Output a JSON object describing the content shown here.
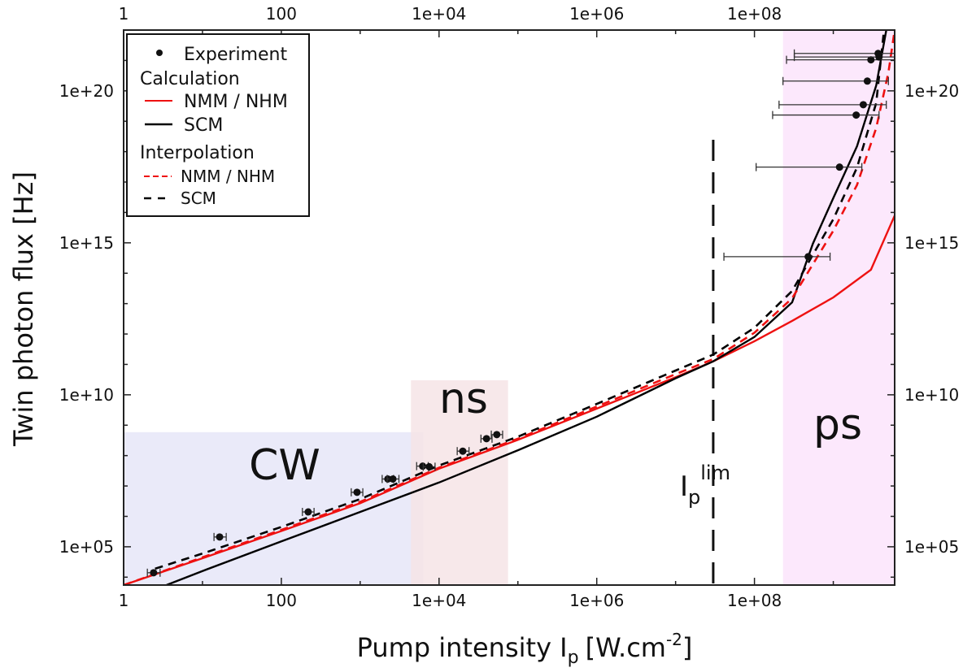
{
  "chart_data": {
    "type": "scatter",
    "xlabel": "Pump intensity I",
    "xlabel_sub": "p",
    "xlabel_unit": "[W.cm",
    "xlabel_sup": "-2",
    "xlabel_end": "]",
    "ylabel": "Twin photon flux [Hz]",
    "xscale": "log",
    "yscale": "log",
    "xlim": [
      1,
      6000000000.0
    ],
    "ylim": [
      5500.0,
      1e+22
    ],
    "grid": false,
    "legend_placement": "top-left",
    "x_ticks": [
      1,
      100,
      10000.0,
      1000000.0,
      100000000.0
    ],
    "x_tick_labels": [
      "1",
      "100",
      "1e+04",
      "1e+06",
      "1e+08"
    ],
    "y_ticks": [
      100000.0,
      10000000000.0,
      1000000000000000.0,
      1e+20
    ],
    "y_tick_labels": [
      "1e+05",
      "1e+10",
      "1e+15",
      "1e+20"
    ],
    "legend": {
      "experiment": "Experiment",
      "calculation": "Calculation",
      "calc_nmm": "NMM / NHM",
      "calc_scm": "SCM",
      "interpolation": "Interpolation",
      "interp_nmm": "NMM / NHM",
      "interp_scm": "SCM"
    },
    "regions": [
      {
        "label": "CW",
        "x": [
          1,
          6300
        ],
        "y": [
          5500.0,
          590000000.0
        ],
        "color": "#e6e6f8"
      },
      {
        "label": "ns",
        "x": [
          4400,
          75000.0
        ],
        "y": [
          5500.0,
          30000000000.0
        ],
        "color": "#f6e4e6"
      },
      {
        "label": "ps",
        "x": [
          230000000.0,
          6000000000.0
        ],
        "y": [
          5500.0,
          1e+22
        ],
        "color": "#fbe4fb"
      }
    ],
    "limit_line": {
      "x": 30000000.0,
      "label": "I",
      "label_sub": "p",
      "label_sup": "lim"
    },
    "experiment": [
      {
        "x": 2.4,
        "y": 14000.0,
        "xlo": 2.0,
        "xhi": 2.9
      },
      {
        "x": 16.5,
        "y": 210000.0,
        "xlo": 14,
        "xhi": 20
      },
      {
        "x": 219,
        "y": 1400000.0,
        "xlo": 185,
        "xhi": 260
      },
      {
        "x": 912,
        "y": 6200000.0,
        "xlo": 770,
        "xhi": 1080
      },
      {
        "x": 2240,
        "y": 17000000.0,
        "xlo": 1900,
        "xhi": 2650
      },
      {
        "x": 2600,
        "y": 17000000.0,
        "xlo": 2200,
        "xhi": 3100
      },
      {
        "x": 6200,
        "y": 45000000.0,
        "xlo": 5200,
        "xhi": 7300
      },
      {
        "x": 7500,
        "y": 43000000.0,
        "xlo": 6300,
        "xhi": 8900
      },
      {
        "x": 20000.0,
        "y": 140000000.0,
        "xlo": 17000.0,
        "xhi": 24000.0
      },
      {
        "x": 40000.0,
        "y": 360000000.0,
        "xlo": 34000.0,
        "xhi": 47000.0
      },
      {
        "x": 54000.0,
        "y": 490000000.0,
        "xlo": 46000.0,
        "xhi": 64000.0
      },
      {
        "x": 480000000.0,
        "y": 350000000000000.0,
        "xlo": 41000000.0,
        "xhi": 910000000.0
      },
      {
        "x": 1200000000.0,
        "y": 3.1e+17,
        "xlo": 105000000.0,
        "xhi": 2300000000.0
      },
      {
        "x": 1950000000.0,
        "y": 1.6e+19,
        "xlo": 170000000.0,
        "xhi": 3800000000.0
      },
      {
        "x": 2400000000.0,
        "y": 3.5e+19,
        "xlo": 205000000.0,
        "xhi": 4700000000.0
      },
      {
        "x": 2700000000.0,
        "y": 2.1e+20,
        "xlo": 230000000.0,
        "xhi": 5000000000.0
      },
      {
        "x": 3000000000.0,
        "y": 1.05e+21,
        "xlo": 255000000.0,
        "xhi": 6000000000.0
      },
      {
        "x": 3800000000.0,
        "y": 1.3e+21,
        "xlo": 320000000.0,
        "xhi": 6000000000.0
      },
      {
        "x": 3700000000.0,
        "y": 1.7e+21,
        "xlo": 320000000.0,
        "xhi": 6000000000.0
      }
    ],
    "series": [
      {
        "name": "Calculation NMM / NHM",
        "color": "#ee1111",
        "dash": false,
        "points": [
          [
            1,
            5500.0
          ],
          [
            10,
            42000.0
          ],
          [
            100,
            330000.0
          ],
          [
            1000,
            2700000.0
          ],
          [
            10000.0,
            37000000.0
          ],
          [
            100000.0,
            330000000.0
          ],
          [
            1000000.0,
            3500000000.0
          ],
          [
            10000000.0,
            38000000000.0
          ],
          [
            30000000.0,
            126000000000.0
          ],
          [
            100000000.0,
            580000000000.0
          ],
          [
            300000000.0,
            2700000000000.0
          ],
          [
            1000000000.0,
            16000000000000.0
          ],
          [
            3000000000.0,
            130000000000000.0
          ],
          [
            6000000000.0,
            7900000000000000.0
          ]
        ]
      },
      {
        "name": "Calculation SCM",
        "color": "#000000",
        "dash": false,
        "points": [
          [
            3.5,
            5500.0
          ],
          [
            10,
            16000.0
          ],
          [
            100,
            150000.0
          ],
          [
            1000,
            1400000.0
          ],
          [
            10000.0,
            13000000.0
          ],
          [
            100000.0,
            150000000.0
          ],
          [
            1000000.0,
            1900000000.0
          ],
          [
            10000000.0,
            35000000000.0
          ],
          [
            30000000.0,
            126000000000.0
          ],
          [
            100000000.0,
            800000000000.0
          ],
          [
            300000000.0,
            11000000000000.0
          ],
          [
            550000000.0,
            930000000000000.0
          ],
          [
            1000000000.0,
            3e+16
          ],
          [
            2000000000.0,
            1.5e+18
          ],
          [
            3500000000.0,
            1.5e+20
          ],
          [
            4700000000.0,
            1e+22
          ]
        ]
      },
      {
        "name": "Interpolation NMM / NHM",
        "color": "#ee1111",
        "dash": true,
        "points": [
          [
            1,
            5500.0
          ],
          [
            10,
            45000.0
          ],
          [
            100,
            360000.0
          ],
          [
            1000,
            3000000.0
          ],
          [
            10000.0,
            40000000.0
          ],
          [
            100000.0,
            360000000.0
          ],
          [
            1000000.0,
            4100000000.0
          ],
          [
            10000000.0,
            48000000000.0
          ],
          [
            30000000.0,
            150000000000.0
          ],
          [
            100000000.0,
            1100000000000.0
          ],
          [
            300000000.0,
            15000000000000.0
          ],
          [
            1000000000.0,
            2500000000000000.0
          ],
          [
            2000000000.0,
            8e+16
          ],
          [
            3500000000.0,
            6e+18
          ],
          [
            5000000000.0,
            4e+20
          ],
          [
            6000000000.0,
            1e+22
          ]
        ]
      },
      {
        "name": "Interpolation SCM",
        "color": "#000000",
        "dash": true,
        "points": [
          [
            2.5,
            19000.0
          ],
          [
            10,
            60000.0
          ],
          [
            100,
            450000.0
          ],
          [
            1000,
            3700000.0
          ],
          [
            10000.0,
            47000000.0
          ],
          [
            100000.0,
            420000000.0
          ],
          [
            1000000.0,
            5000000000.0
          ],
          [
            10000000.0,
            63000000000.0
          ],
          [
            30000000.0,
            210000000000.0
          ],
          [
            100000000.0,
            1600000000000.0
          ],
          [
            300000000.0,
            26000000000000.0
          ],
          [
            1000000000.0,
            6000000000000000.0
          ],
          [
            2000000000.0,
            3e+17
          ],
          [
            3500000000.0,
            4e+19
          ],
          [
            4400000000.0,
            1e+22
          ]
        ]
      }
    ]
  }
}
